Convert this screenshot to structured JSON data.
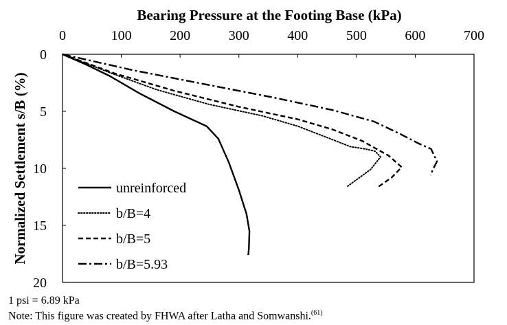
{
  "chart_data": {
    "type": "line",
    "title": "Bearing Pressure at the Footing Base (kPa)",
    "xlabel": "Bearing Pressure at the Footing Base (kPa)",
    "ylabel": "Normalized Settlement s/B (%)",
    "xlim": [
      0,
      700
    ],
    "ylim": [
      0,
      20
    ],
    "x_axis_position": "top",
    "y_axis_inverted": true,
    "xticks": [
      0,
      100,
      200,
      300,
      400,
      500,
      600,
      700
    ],
    "yticks": [
      0,
      5,
      10,
      15,
      20
    ],
    "grid": false,
    "legend_position": "bottom-left",
    "series": [
      {
        "name": "unreinforced",
        "style": "solid",
        "points": [
          [
            0,
            0
          ],
          [
            40,
            0.9
          ],
          [
            80,
            1.9
          ],
          [
            130,
            3.4
          ],
          [
            190,
            5.0
          ],
          [
            245,
            6.3
          ],
          [
            265,
            7.4
          ],
          [
            283,
            9.5
          ],
          [
            300,
            11.9
          ],
          [
            313,
            14.0
          ],
          [
            318,
            15.5
          ],
          [
            317,
            17.0
          ],
          [
            316,
            17.6
          ]
        ]
      },
      {
        "name": "b/B=4",
        "style": "dotted",
        "points": [
          [
            0,
            0
          ],
          [
            80,
            1.6
          ],
          [
            160,
            3.1
          ],
          [
            250,
            4.4
          ],
          [
            340,
            5.4
          ],
          [
            400,
            6.3
          ],
          [
            455,
            7.4
          ],
          [
            490,
            8.1
          ],
          [
            515,
            8.3
          ],
          [
            532,
            8.5
          ],
          [
            541,
            9.0
          ],
          [
            524,
            10.1
          ],
          [
            484,
            11.6
          ]
        ]
      },
      {
        "name": "b/B=5",
        "style": "dashed",
        "points": [
          [
            0,
            0
          ],
          [
            90,
            1.7
          ],
          [
            190,
            3.2
          ],
          [
            300,
            4.6
          ],
          [
            400,
            5.7
          ],
          [
            460,
            6.6
          ],
          [
            510,
            7.6
          ],
          [
            555,
            8.9
          ],
          [
            577,
            9.9
          ],
          [
            560,
            10.8
          ],
          [
            535,
            11.7
          ]
        ]
      },
      {
        "name": "b/B=5.93",
        "style": "dash-dot",
        "points": [
          [
            0,
            0
          ],
          [
            120,
            1.4
          ],
          [
            240,
            2.6
          ],
          [
            360,
            3.8
          ],
          [
            460,
            4.9
          ],
          [
            530,
            5.9
          ],
          [
            575,
            7.0
          ],
          [
            605,
            7.8
          ],
          [
            627,
            8.3
          ],
          [
            637,
            9.4
          ],
          [
            630,
            10.1
          ],
          [
            626,
            10.6
          ]
        ]
      }
    ]
  },
  "notes": {
    "conversion": "1 psi = 6.89 kPa",
    "source": "Note: This figure was created by FHWA after Latha and Somwanshi.",
    "source_ref": "(61)"
  }
}
